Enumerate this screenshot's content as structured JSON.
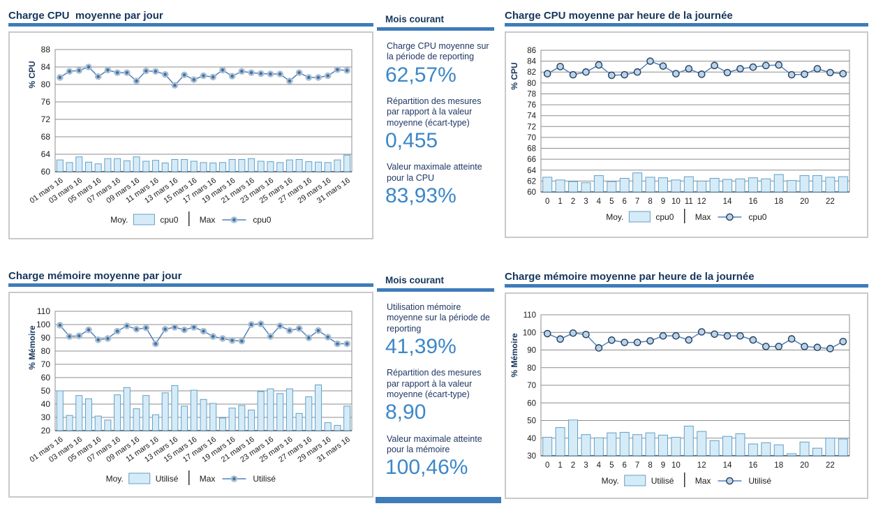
{
  "colors": {
    "accent_blue": "#3e7cba",
    "navy_text": "#16365c",
    "stat_value_blue": "#3c87c8",
    "bar_fill": "#d6ebf8",
    "bar_stroke": "#61a0c6",
    "line_blue": "#4f81bd"
  },
  "panels": {
    "cpu_daily": {
      "title": "Charge CPU  moyenne par jour"
    },
    "cpu_stats": {
      "heading": "Mois courant",
      "stats": [
        {
          "label": "Charge CPU moyenne sur la période de reporting",
          "value": "62,57%"
        },
        {
          "label": "Répartition des mesures par rapport à la valeur moyenne (écart-type)",
          "value": "0,455"
        },
        {
          "label": "Valeur maximale atteinte pour la CPU",
          "value": "83,93%"
        }
      ]
    },
    "cpu_hourly": {
      "title": "Charge CPU moyenne par heure de la journée"
    },
    "mem_daily": {
      "title": "Charge mémoire moyenne par jour"
    },
    "mem_stats": {
      "heading": "Mois courant",
      "stats": [
        {
          "label": "Utilisation mémoire moyenne sur la période de reporting",
          "value": "41,39%"
        },
        {
          "label": "Répartition des mesures par rapport à la valeur moyenne (écart-type)",
          "value": "8,90"
        },
        {
          "label": "Valeur maximale atteinte pour la mémoire",
          "value": "100,46%"
        }
      ]
    },
    "mem_hourly": {
      "title": "Charge mémoire moyenne par heure de la journée"
    }
  },
  "chart_data": [
    {
      "id": "cpu_daily",
      "type": "bar",
      "title": "Charge CPU  moyenne par jour",
      "ylabel": "% CPU",
      "ylim": [
        60,
        88
      ],
      "y_ticks": [
        88,
        84,
        80,
        76,
        72,
        68,
        64,
        60
      ],
      "x_labels": [
        "01 mars 16",
        "",
        "03 mars 16",
        "",
        "05 mars 16",
        "",
        "07 mars 16",
        "",
        "09 mars 16",
        "",
        "11 mars 16",
        "",
        "13 mars 16",
        "",
        "15 mars 16",
        "",
        "17 mars 16",
        "",
        "19 mars 16",
        "",
        "21 mars 16",
        "",
        "23 mars 16",
        "",
        "25 mars 16",
        "",
        "27 mars 16",
        "",
        "29 mars 16",
        "",
        "31 mars 16"
      ],
      "legend": {
        "moy_label": "Moy.",
        "moy_series": "cpu0",
        "max_label": "Max",
        "max_series": "cpu0"
      },
      "series": [
        {
          "name": "Moy. cpu0",
          "type": "bar",
          "values": [
            62.7,
            62.1,
            63.4,
            62.2,
            61.8,
            63.0,
            63.0,
            62.5,
            63.4,
            62.4,
            62.6,
            62.0,
            62.8,
            62.8,
            62.4,
            62.1,
            62.0,
            62.1,
            62.8,
            62.8,
            63.0,
            62.4,
            62.3,
            62.1,
            62.7,
            62.8,
            62.3,
            62.2,
            62.1,
            62.7,
            63.8
          ]
        },
        {
          "name": "Max cpu0",
          "type": "line",
          "values": [
            81.6,
            83.0,
            83.2,
            84.0,
            81.8,
            83.3,
            82.7,
            82.7,
            80.8,
            83.1,
            83.0,
            82.3,
            79.8,
            82.2,
            81.1,
            82.0,
            81.7,
            83.3,
            81.9,
            83.0,
            82.7,
            82.5,
            82.4,
            82.4,
            80.8,
            82.7,
            81.6,
            81.6,
            82.0,
            83.4,
            83.2
          ]
        }
      ]
    },
    {
      "id": "cpu_hourly",
      "type": "bar",
      "title": "Charge CPU moyenne par heure de la journée",
      "ylabel": "% CPU",
      "ylim": [
        60,
        86
      ],
      "y_ticks": [
        86,
        84,
        82,
        80,
        78,
        76,
        74,
        72,
        70,
        68,
        66,
        64,
        62,
        60
      ],
      "x_labels": [
        "0",
        "1",
        "2",
        "3",
        "4",
        "5",
        "6",
        "7",
        "8",
        "9",
        "10",
        "11",
        "12",
        "",
        "14",
        "",
        "16",
        "",
        "18",
        "",
        "20",
        "",
        "22",
        ""
      ],
      "legend": {
        "moy_label": "Moy.",
        "moy_series": "cpu0",
        "max_label": "Max",
        "max_series": "cpu0"
      },
      "series": [
        {
          "name": "Moy. cpu0",
          "type": "bar",
          "values": [
            62.7,
            62.2,
            61.9,
            61.7,
            63.0,
            61.9,
            62.5,
            63.5,
            62.7,
            62.6,
            62.2,
            62.8,
            62.0,
            62.5,
            62.3,
            62.4,
            62.6,
            62.4,
            63.2,
            62.1,
            63.0,
            63.0,
            62.7,
            62.8
          ]
        },
        {
          "name": "Max cpu0",
          "type": "line",
          "values": [
            81.7,
            83.0,
            81.5,
            82.0,
            83.3,
            81.4,
            81.5,
            82.0,
            84.0,
            83.1,
            81.7,
            82.6,
            81.6,
            83.2,
            81.9,
            82.6,
            82.9,
            83.2,
            83.3,
            81.5,
            81.6,
            82.6,
            81.9,
            81.7
          ]
        }
      ]
    },
    {
      "id": "mem_daily",
      "type": "bar",
      "title": "Charge mémoire moyenne par jour",
      "ylabel": "% Mémoire",
      "ylim": [
        20,
        110
      ],
      "y_ticks": [
        110,
        100,
        90,
        80,
        70,
        60,
        50,
        40,
        30,
        20
      ],
      "x_labels": [
        "01 mars 16",
        "",
        "03 mars 16",
        "",
        "05 mars 16",
        "",
        "07 mars 16",
        "",
        "09 mars 16",
        "",
        "11 mars 16",
        "",
        "13 mars 16",
        "",
        "15 mars 16",
        "",
        "17 mars 16",
        "",
        "19 mars 16",
        "",
        "21 mars 16",
        "",
        "23 mars 16",
        "",
        "25 mars 16",
        "",
        "27 mars 16",
        "",
        "29 mars 16",
        "",
        "31 mars 16"
      ],
      "legend": {
        "moy_label": "Moy.",
        "moy_series": "Utilisé",
        "max_label": "Max",
        "max_series": "Utilisé"
      },
      "series": [
        {
          "name": "Moy. Utilisé",
          "type": "bar",
          "values": [
            50.0,
            31.5,
            46.5,
            44.0,
            31.0,
            28.0,
            47.0,
            52.5,
            36.5,
            46.5,
            32.0,
            48.5,
            54.0,
            38.5,
            50.5,
            43.5,
            40.5,
            29.5,
            37.0,
            39.0,
            35.5,
            49.5,
            51.5,
            48.0,
            51.5,
            33.0,
            45.5,
            54.5,
            26.0,
            24.0,
            38.5
          ]
        },
        {
          "name": "Max Utilisé",
          "type": "line",
          "values": [
            99.5,
            91.0,
            91.5,
            96.0,
            88.5,
            89.5,
            95.0,
            99.0,
            96.5,
            97.5,
            85.5,
            96.5,
            98.0,
            96.0,
            98.0,
            95.0,
            91.0,
            89.5,
            88.0,
            87.5,
            100.0,
            100.5,
            91.0,
            99.0,
            95.5,
            97.0,
            90.0,
            95.5,
            90.5,
            85.5,
            85.5
          ]
        }
      ]
    },
    {
      "id": "mem_hourly",
      "type": "bar",
      "title": "Charge mémoire moyenne par heure de la journée",
      "ylabel": "% Mémoire",
      "ylim": [
        30,
        110
      ],
      "y_ticks": [
        110,
        100,
        90,
        80,
        70,
        60,
        50,
        40,
        30
      ],
      "x_labels": [
        "0",
        "1",
        "2",
        "3",
        "4",
        "5",
        "6",
        "7",
        "8",
        "9",
        "10",
        "",
        "12",
        "",
        "14",
        "",
        "16",
        "",
        "18",
        "",
        "20",
        "",
        "22",
        ""
      ],
      "legend": {
        "moy_label": "Moy.",
        "moy_series": "Utilisé",
        "max_label": "Max",
        "max_series": "Utilisé"
      },
      "series": [
        {
          "name": "Moy. Utilisé",
          "type": "bar",
          "values": [
            40.5,
            46.0,
            50.3,
            42.0,
            40.2,
            43.0,
            43.3,
            42.0,
            43.0,
            41.7,
            40.5,
            46.8,
            43.8,
            38.6,
            41.0,
            42.5,
            36.7,
            37.4,
            36.2,
            31.2,
            37.8,
            34.3,
            40.0,
            39.5
          ]
        },
        {
          "name": "Max Utilisé",
          "type": "line",
          "values": [
            99.3,
            96.2,
            99.6,
            98.8,
            91.2,
            95.6,
            94.3,
            94.3,
            95.2,
            98.0,
            98.0,
            95.7,
            100.3,
            99.0,
            98.0,
            98.0,
            95.7,
            92.0,
            92.0,
            96.3,
            92.0,
            91.5,
            90.8,
            94.8
          ]
        }
      ]
    }
  ]
}
